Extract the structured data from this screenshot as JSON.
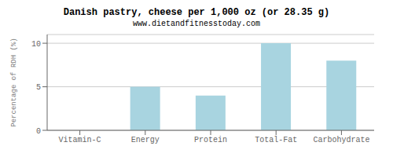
{
  "chart_data": {
    "type": "bar",
    "title": "Danish pastry, cheese per 1,000 oz (or 28.35 g)",
    "subtitle": "www.dietandfitnesstoday.com",
    "categories": [
      "Vitamin-C",
      "Energy",
      "Protein",
      "Total-Fat",
      "Carbohydrate"
    ],
    "values": [
      0,
      5,
      4,
      10,
      8
    ],
    "color": "#a8d4e0",
    "ylabel": "Percentage of RDH (%)",
    "ylim": [
      0,
      11
    ],
    "yticks": [
      0,
      5,
      10
    ],
    "grid": true
  }
}
